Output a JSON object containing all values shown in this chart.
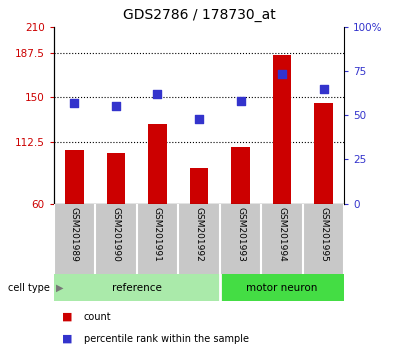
{
  "title": "GDS2786 / 178730_at",
  "samples": [
    "GSM201989",
    "GSM201990",
    "GSM201991",
    "GSM201992",
    "GSM201993",
    "GSM201994",
    "GSM201995"
  ],
  "bar_values": [
    105,
    103,
    127,
    90,
    108,
    186,
    145
  ],
  "percentile_values": [
    57,
    55,
    62,
    48,
    58,
    73,
    65
  ],
  "bar_color": "#cc0000",
  "dot_color": "#3333cc",
  "left_ylim": [
    60,
    210
  ],
  "left_yticks": [
    60,
    112.5,
    150,
    187.5,
    210
  ],
  "left_ytick_labels": [
    "60",
    "112.5",
    "150",
    "187.5",
    "210"
  ],
  "right_ylim": [
    0,
    100
  ],
  "right_yticks": [
    0,
    25,
    50,
    75,
    100
  ],
  "right_ytick_labels": [
    "0",
    "25",
    "50",
    "75",
    "100%"
  ],
  "hgrid_vals": [
    112.5,
    150,
    187.5
  ],
  "groups": [
    {
      "label": "reference",
      "indices": [
        0,
        1,
        2,
        3
      ],
      "color": "#aaeaaa"
    },
    {
      "label": "motor neuron",
      "indices": [
        4,
        5,
        6
      ],
      "color": "#44dd44"
    }
  ],
  "tick_area_color": "#c8c8c8",
  "bar_width": 0.45,
  "legend": [
    {
      "label": "count",
      "color": "#cc0000"
    },
    {
      "label": "percentile rank within the sample",
      "color": "#3333cc"
    }
  ]
}
